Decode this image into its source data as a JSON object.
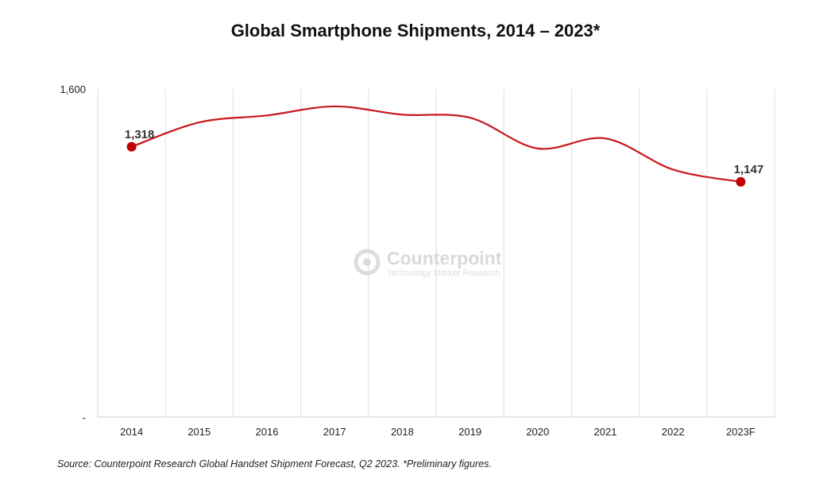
{
  "chart_data": {
    "type": "line",
    "title": "Global Smartphone Shipments, 2014 – 2023*",
    "categories": [
      "2014",
      "2015",
      "2016",
      "2017",
      "2018",
      "2019",
      "2020",
      "2021",
      "2022",
      "2023F"
    ],
    "series": [
      {
        "values": [
          1318,
          1437,
          1471,
          1515,
          1475,
          1460,
          1310,
          1359,
          1207,
          1147
        ],
        "color": "#c8171c"
      }
    ],
    "ylim": [
      0,
      1600
    ],
    "y_tick_labels": [
      "-",
      "1,600"
    ],
    "data_labels": [
      {
        "index": 0,
        "text": "1,318"
      },
      {
        "index": 9,
        "text": "1,147"
      }
    ],
    "grid": "vertical",
    "xlabel": "",
    "ylabel": ""
  },
  "watermark": {
    "name": "Counterpoint",
    "subtitle": "Technology Market Research"
  },
  "source_note": "Source:  Counterpoint Research Global Handset Shipment Forecast, Q2 2023. *Preliminary figures."
}
